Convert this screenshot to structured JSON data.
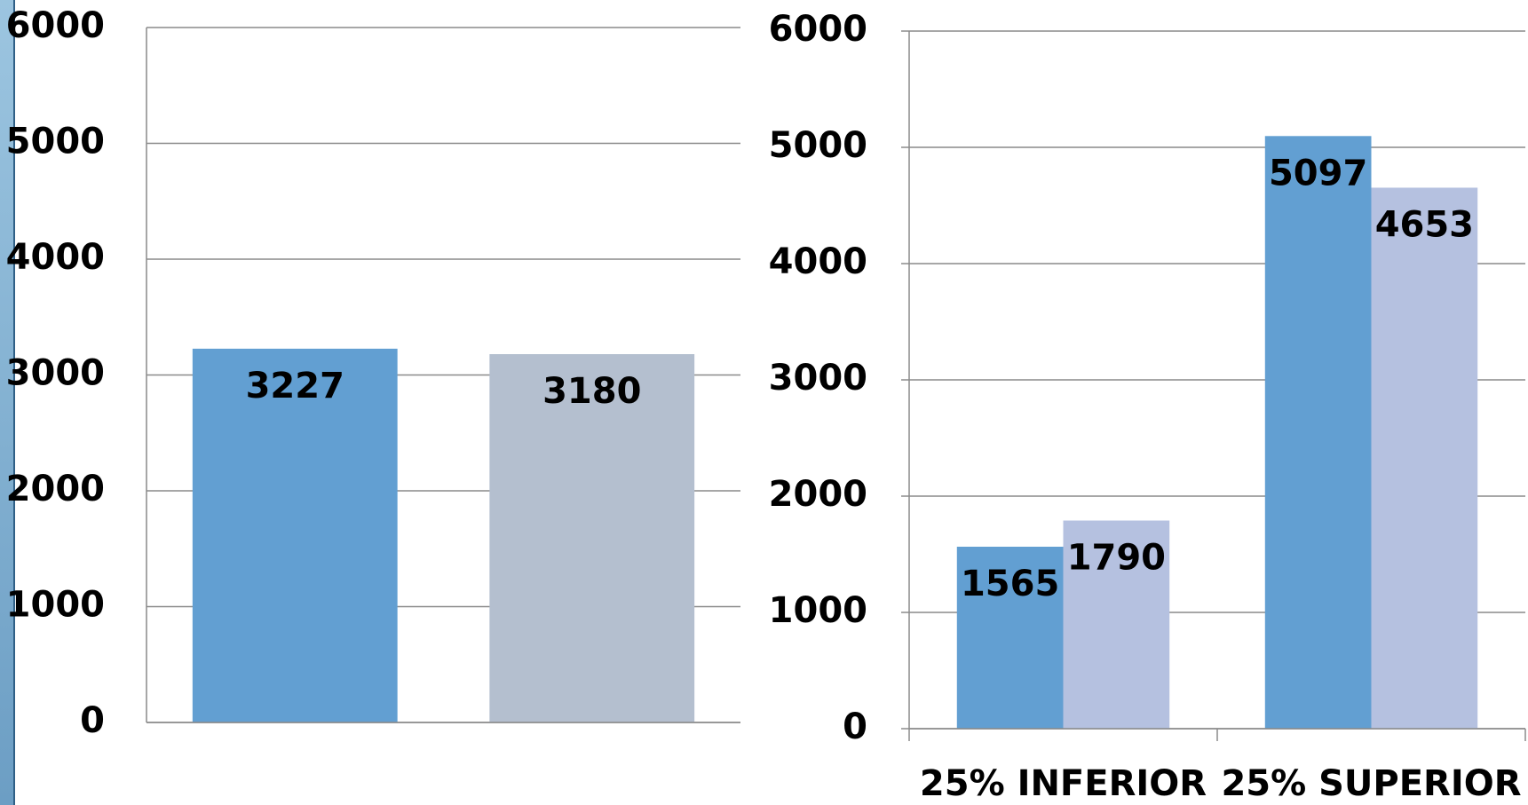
{
  "chart_data": [
    {
      "type": "bar",
      "categories": [
        null,
        null
      ],
      "values": [
        3227,
        3180
      ],
      "colors": [
        "#629fd2",
        "#b4bfcf"
      ],
      "ylim": [
        0,
        6000
      ],
      "yticks": [
        0,
        1000,
        2000,
        3000,
        4000,
        5000,
        6000
      ],
      "grid": true
    },
    {
      "type": "grouped_bar",
      "categories": [
        "25% INFERIOR",
        "25% SUPERIOR"
      ],
      "series": [
        {
          "color": "#629fd2",
          "values": [
            1565,
            5097
          ]
        },
        {
          "color": "#b5c1e0",
          "values": [
            1790,
            4653
          ]
        }
      ],
      "ylim": [
        0,
        6000
      ],
      "yticks": [
        0,
        1000,
        2000,
        3000,
        4000,
        5000,
        6000
      ],
      "grid": true
    }
  ]
}
